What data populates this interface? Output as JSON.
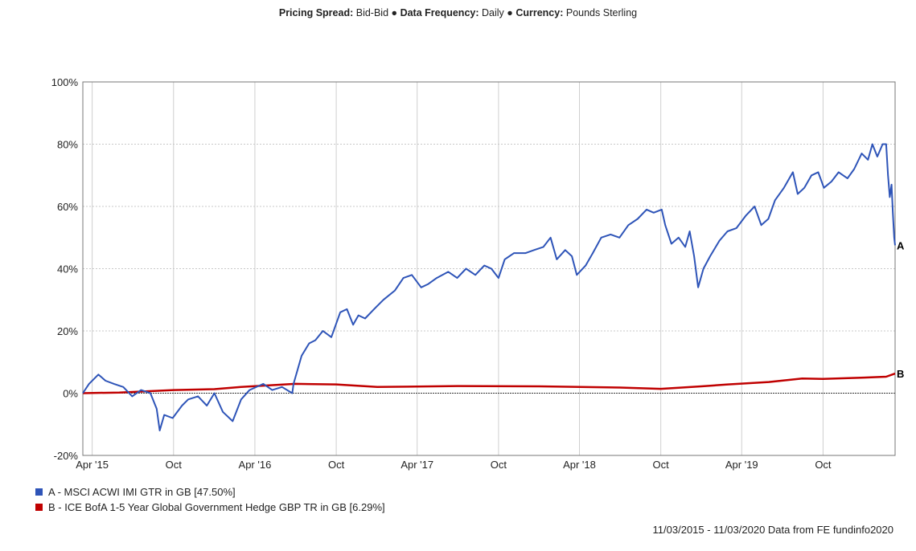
{
  "header": {
    "k1": "Pricing Spread:",
    "v1": "Bid-Bid",
    "sep": "●",
    "k2": "Data Frequency:",
    "v2": "Daily",
    "k3": "Currency:",
    "v3": "Pounds Sterling"
  },
  "legend": [
    {
      "label": "A - MSCI ACWI IMI GTR in GB [47.50%]",
      "color": "#2e54b8"
    },
    {
      "label": "B - ICE BofA 1-5 Year Global Government Hedge GBP TR in GB [6.29%]",
      "color": "#c00000"
    }
  ],
  "source": "11/03/2015 - 11/03/2020 Data from FE fundinfo2020",
  "chart_data": {
    "type": "line",
    "x_range": [
      "2015-03-11",
      "2020-03-11"
    ],
    "ylim": [
      -20,
      100
    ],
    "yticks": [
      {
        "v": 100,
        "label": "100%"
      },
      {
        "v": 80,
        "label": "80%"
      },
      {
        "v": 60,
        "label": "60%"
      },
      {
        "v": 40,
        "label": "40%"
      },
      {
        "v": 20,
        "label": "20%"
      },
      {
        "v": 0,
        "label": "0%"
      },
      {
        "v": -20,
        "label": "-20%"
      }
    ],
    "xticks": [
      {
        "d": "2015-04-01",
        "label": "Apr '15"
      },
      {
        "d": "2015-10-01",
        "label": "Oct"
      },
      {
        "d": "2016-04-01",
        "label": "Apr '16"
      },
      {
        "d": "2016-10-01",
        "label": "Oct"
      },
      {
        "d": "2017-04-01",
        "label": "Apr '17"
      },
      {
        "d": "2017-10-01",
        "label": "Oct"
      },
      {
        "d": "2018-04-01",
        "label": "Apr '18"
      },
      {
        "d": "2018-10-01",
        "label": "Oct"
      },
      {
        "d": "2019-04-01",
        "label": "Apr '19"
      },
      {
        "d": "2019-10-01",
        "label": "Oct"
      }
    ],
    "grid": true,
    "series": [
      {
        "name": "A",
        "color": "#2e54b8",
        "points": [
          [
            "2015-03-11",
            0
          ],
          [
            "2015-03-25",
            3
          ],
          [
            "2015-04-15",
            6
          ],
          [
            "2015-05-01",
            4
          ],
          [
            "2015-05-20",
            3
          ],
          [
            "2015-06-10",
            2
          ],
          [
            "2015-06-30",
            -1
          ],
          [
            "2015-07-20",
            1
          ],
          [
            "2015-08-10",
            0
          ],
          [
            "2015-08-24",
            -5
          ],
          [
            "2015-08-31",
            -12
          ],
          [
            "2015-09-10",
            -7
          ],
          [
            "2015-09-29",
            -8
          ],
          [
            "2015-10-20",
            -4
          ],
          [
            "2015-11-03",
            -2
          ],
          [
            "2015-11-25",
            -1
          ],
          [
            "2015-12-15",
            -4
          ],
          [
            "2016-01-01",
            0
          ],
          [
            "2016-01-20",
            -6
          ],
          [
            "2016-02-11",
            -9
          ],
          [
            "2016-03-01",
            -2
          ],
          [
            "2016-03-20",
            1
          ],
          [
            "2016-04-20",
            3
          ],
          [
            "2016-05-10",
            1
          ],
          [
            "2016-06-01",
            2
          ],
          [
            "2016-06-24",
            0
          ],
          [
            "2016-06-27",
            3
          ],
          [
            "2016-07-15",
            12
          ],
          [
            "2016-08-01",
            16
          ],
          [
            "2016-08-15",
            17
          ],
          [
            "2016-09-01",
            20
          ],
          [
            "2016-09-20",
            18
          ],
          [
            "2016-10-10",
            26
          ],
          [
            "2016-10-25",
            27
          ],
          [
            "2016-11-08",
            22
          ],
          [
            "2016-11-20",
            25
          ],
          [
            "2016-12-05",
            24
          ],
          [
            "2016-12-25",
            27
          ],
          [
            "2017-01-15",
            30
          ],
          [
            "2017-02-10",
            33
          ],
          [
            "2017-03-01",
            37
          ],
          [
            "2017-03-20",
            38
          ],
          [
            "2017-04-10",
            34
          ],
          [
            "2017-04-25",
            35
          ],
          [
            "2017-05-15",
            37
          ],
          [
            "2017-06-10",
            39
          ],
          [
            "2017-06-30",
            37
          ],
          [
            "2017-07-20",
            40
          ],
          [
            "2017-08-10",
            38
          ],
          [
            "2017-08-30",
            41
          ],
          [
            "2017-09-15",
            40
          ],
          [
            "2017-10-01",
            37
          ],
          [
            "2017-10-15",
            43
          ],
          [
            "2017-11-05",
            45
          ],
          [
            "2017-12-01",
            45
          ],
          [
            "2017-12-20",
            46
          ],
          [
            "2018-01-10",
            47
          ],
          [
            "2018-01-26",
            50
          ],
          [
            "2018-02-09",
            43
          ],
          [
            "2018-02-28",
            46
          ],
          [
            "2018-03-15",
            44
          ],
          [
            "2018-03-26",
            38
          ],
          [
            "2018-04-15",
            41
          ],
          [
            "2018-05-01",
            45
          ],
          [
            "2018-05-20",
            50
          ],
          [
            "2018-06-10",
            51
          ],
          [
            "2018-06-30",
            50
          ],
          [
            "2018-07-20",
            54
          ],
          [
            "2018-08-10",
            56
          ],
          [
            "2018-08-30",
            59
          ],
          [
            "2018-09-15",
            58
          ],
          [
            "2018-10-03",
            59
          ],
          [
            "2018-10-11",
            54
          ],
          [
            "2018-10-25",
            48
          ],
          [
            "2018-11-10",
            50
          ],
          [
            "2018-11-25",
            47
          ],
          [
            "2018-12-05",
            52
          ],
          [
            "2018-12-15",
            44
          ],
          [
            "2018-12-24",
            34
          ],
          [
            "2019-01-05",
            40
          ],
          [
            "2019-01-20",
            44
          ],
          [
            "2019-02-10",
            49
          ],
          [
            "2019-02-28",
            52
          ],
          [
            "2019-03-20",
            53
          ],
          [
            "2019-04-10",
            57
          ],
          [
            "2019-04-30",
            60
          ],
          [
            "2019-05-15",
            54
          ],
          [
            "2019-05-31",
            56
          ],
          [
            "2019-06-15",
            62
          ],
          [
            "2019-07-05",
            66
          ],
          [
            "2019-07-25",
            71
          ],
          [
            "2019-08-05",
            64
          ],
          [
            "2019-08-20",
            66
          ],
          [
            "2019-09-05",
            70
          ],
          [
            "2019-09-20",
            71
          ],
          [
            "2019-10-03",
            66
          ],
          [
            "2019-10-20",
            68
          ],
          [
            "2019-11-05",
            71
          ],
          [
            "2019-11-25",
            69
          ],
          [
            "2019-12-10",
            72
          ],
          [
            "2019-12-27",
            77
          ],
          [
            "2020-01-10",
            75
          ],
          [
            "2020-01-20",
            80
          ],
          [
            "2020-01-31",
            76
          ],
          [
            "2020-02-12",
            80
          ],
          [
            "2020-02-20",
            80
          ],
          [
            "2020-02-24",
            70
          ],
          [
            "2020-02-28",
            63
          ],
          [
            "2020-03-03",
            67
          ],
          [
            "2020-03-06",
            58
          ],
          [
            "2020-03-09",
            50
          ],
          [
            "2020-03-11",
            47.5
          ]
        ]
      },
      {
        "name": "B",
        "color": "#c00000",
        "points": [
          [
            "2015-03-11",
            0
          ],
          [
            "2015-06-01",
            0.2
          ],
          [
            "2015-10-01",
            1
          ],
          [
            "2016-01-01",
            1.3
          ],
          [
            "2016-03-01",
            2
          ],
          [
            "2016-07-01",
            3
          ],
          [
            "2016-10-01",
            2.8
          ],
          [
            "2017-01-01",
            2
          ],
          [
            "2017-07-01",
            2.3
          ],
          [
            "2018-01-01",
            2.2
          ],
          [
            "2018-07-01",
            1.8
          ],
          [
            "2018-10-01",
            1.4
          ],
          [
            "2018-12-31",
            2.2
          ],
          [
            "2019-03-01",
            2.8
          ],
          [
            "2019-06-01",
            3.6
          ],
          [
            "2019-08-15",
            4.7
          ],
          [
            "2019-10-01",
            4.6
          ],
          [
            "2020-01-01",
            5
          ],
          [
            "2020-02-20",
            5.3
          ],
          [
            "2020-03-11",
            6.29
          ]
        ]
      }
    ]
  }
}
